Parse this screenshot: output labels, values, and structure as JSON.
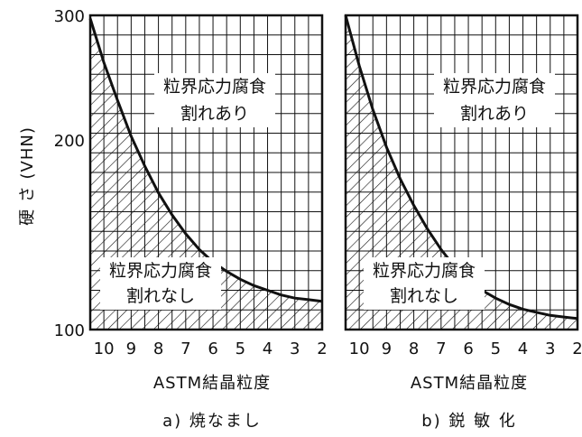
{
  "chart_data": {
    "type": "area",
    "y_axis": {
      "label": "硬 さ (VHN)",
      "ylim": [
        100,
        300
      ],
      "ticks": [
        100,
        200,
        300
      ],
      "tick_labels": [
        "100",
        "200",
        "300"
      ]
    },
    "x_axis": {
      "label": "ASTM結晶粒度",
      "xlim": [
        10.5,
        2
      ],
      "reversed": true,
      "ticks": [
        10,
        9,
        8,
        7,
        6,
        5,
        4,
        3,
        2
      ],
      "tick_labels": [
        "10",
        "9",
        "8",
        "7",
        "6",
        "5",
        "4",
        "3",
        "2"
      ]
    },
    "grid": true,
    "panels": [
      {
        "caption": "a) 焼なまし",
        "boundary": {
          "x": [
            10.5,
            10.0,
            9.5,
            9.0,
            8.5,
            8.0,
            7.5,
            7.0,
            6.5,
            6.0,
            5.5,
            5.0,
            4.5,
            4.0,
            3.5,
            3.0,
            2.5,
            2.0
          ],
          "y": [
            298,
            270,
            246,
            223,
            204,
            187,
            173,
            161,
            151,
            143,
            137,
            132,
            128,
            125,
            122,
            120,
            119,
            118
          ]
        },
        "regions": {
          "upper": [
            "粒界応力腐食",
            "割れあり"
          ],
          "lower": [
            "粒界応力腐食",
            "割れなし"
          ]
        }
      },
      {
        "caption": "b) 鋭 敏 化",
        "boundary": {
          "x": [
            10.5,
            10.0,
            9.5,
            9.0,
            8.5,
            8.0,
            7.5,
            7.0,
            6.5,
            6.0,
            5.5,
            5.0,
            4.5,
            4.0,
            3.5,
            3.0,
            2.5,
            2.0
          ],
          "y": [
            300,
            268,
            240,
            216,
            196,
            179,
            164,
            151,
            140,
            132,
            125,
            120,
            116,
            113,
            111,
            109,
            108,
            107
          ]
        },
        "regions": {
          "upper": [
            "粒界応力腐食",
            "割れあり"
          ],
          "lower": [
            "粒界応力腐食",
            "割れなし"
          ]
        }
      }
    ]
  }
}
